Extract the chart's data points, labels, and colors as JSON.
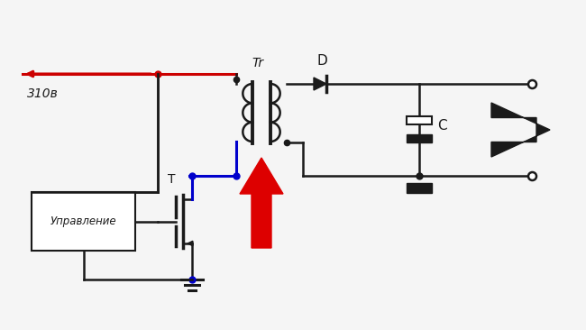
{
  "bg_color": "#f5f5f5",
  "black": "#1a1a1a",
  "red": "#cc0000",
  "blue": "#0000cc",
  "red_arrow": "#dd0000",
  "text_310v": "310в",
  "text_tr": "Tr",
  "text_d": "D",
  "text_c": "C",
  "text_t": "T",
  "text_ctrl": "Управление",
  "figsize": [
    6.5,
    3.66
  ],
  "dpi": 100,
  "lw": 1.8,
  "lw_heavy": 2.2
}
